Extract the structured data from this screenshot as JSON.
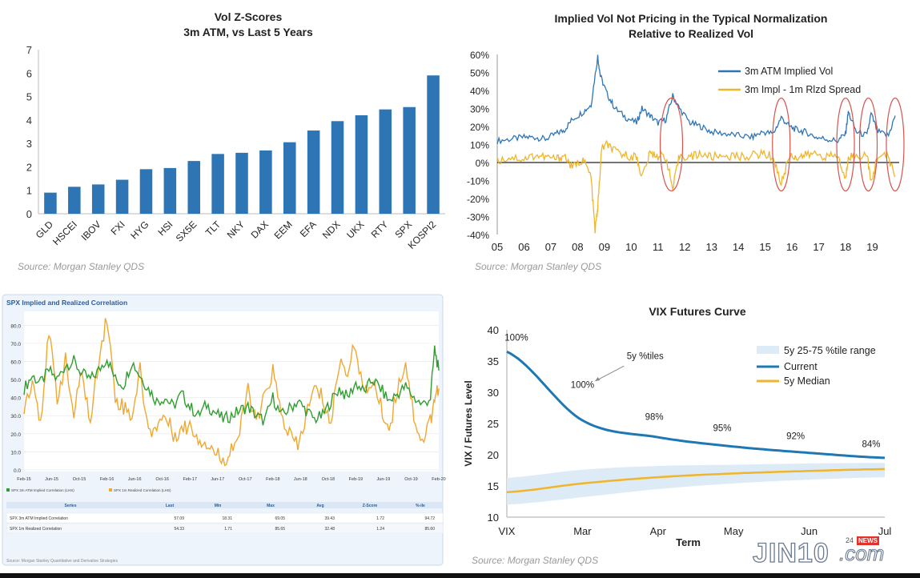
{
  "chart_data": [
    {
      "type": "bar",
      "title": "Vol Z-Scores",
      "subtitle": "3m ATM, vs Last 5 Years",
      "categories": [
        "GLD",
        "HSCEI",
        "IBOV",
        "FXI",
        "HYG",
        "HSI",
        "SX5E",
        "TLT",
        "NKY",
        "DAX",
        "EEM",
        "EFA",
        "NDX",
        "UKX",
        "RTY",
        "SPX",
        "KOSPI2"
      ],
      "values": [
        0.9,
        1.15,
        1.25,
        1.45,
        1.9,
        1.95,
        2.25,
        2.55,
        2.6,
        2.7,
        3.05,
        3.55,
        3.95,
        4.2,
        4.45,
        4.55,
        5.9
      ],
      "ylim": [
        0,
        7
      ],
      "yticks": [
        0,
        1,
        2,
        3,
        4,
        5,
        6,
        7
      ],
      "color": "#2e75b6",
      "source": "Source: Morgan Stanley QDS"
    },
    {
      "type": "line",
      "title": "Implied Vol Not Pricing in the Typical  Normalization",
      "subtitle": "Relative to Realized Vol",
      "xticks": [
        "05",
        "06",
        "07",
        "08",
        "09",
        "10",
        "11",
        "12",
        "13",
        "14",
        "15",
        "16",
        "17",
        "18",
        "19"
      ],
      "yticks": [
        "60%",
        "50%",
        "40%",
        "30%",
        "20%",
        "10%",
        "0%",
        "-10%",
        "-20%",
        "-30%",
        "-40%"
      ],
      "ylim": [
        -40,
        60
      ],
      "series": [
        {
          "name": "3m ATM  Implied Vol",
          "color": "#2e75b6",
          "x": [
            2005,
            2005.5,
            2006,
            2006.4,
            2006.8,
            2007.2,
            2007.5,
            2007.8,
            2008.2,
            2008.5,
            2008.75,
            2008.85,
            2009.1,
            2009.4,
            2009.8,
            2010.2,
            2010.4,
            2010.7,
            2011.0,
            2011.3,
            2011.55,
            2011.8,
            2012.2,
            2012.6,
            2013.0,
            2013.5,
            2014.0,
            2014.5,
            2014.9,
            2015.3,
            2015.6,
            2015.9,
            2016.2,
            2016.5,
            2016.9,
            2017.3,
            2017.7,
            2018.0,
            2018.1,
            2018.4,
            2018.8,
            2018.95,
            2019.2,
            2019.6,
            2019.85
          ],
          "y": [
            12,
            13,
            14,
            14,
            13,
            16,
            18,
            24,
            28,
            32,
            59,
            48,
            38,
            30,
            25,
            22,
            30,
            26,
            22,
            24,
            37,
            30,
            22,
            20,
            17,
            16,
            15,
            14,
            17,
            16,
            25,
            20,
            18,
            17,
            14,
            13,
            12,
            16,
            28,
            17,
            15,
            27,
            17,
            15,
            26
          ]
        },
        {
          "name": "3m Impl - 1m Rlzd Spread",
          "color": "#f0b52b",
          "x": [
            2005,
            2005.5,
            2006,
            2006.4,
            2006.8,
            2007.2,
            2007.5,
            2007.8,
            2008.2,
            2008.5,
            2008.65,
            2008.75,
            2008.9,
            2009.1,
            2009.4,
            2009.8,
            2010.2,
            2010.4,
            2010.7,
            2011.0,
            2011.3,
            2011.55,
            2011.8,
            2012.2,
            2012.6,
            2013.0,
            2013.5,
            2014.0,
            2014.5,
            2014.9,
            2015.3,
            2015.6,
            2015.9,
            2016.2,
            2016.5,
            2016.9,
            2017.3,
            2017.7,
            2018.0,
            2018.1,
            2018.4,
            2018.8,
            2018.95,
            2019.2,
            2019.6,
            2019.85
          ],
          "y": [
            1,
            3,
            2,
            4,
            3,
            2,
            4,
            -3,
            2,
            -8,
            -38,
            -25,
            8,
            10,
            6,
            4,
            3,
            -8,
            5,
            4,
            3,
            -15,
            4,
            3,
            5,
            3,
            4,
            3,
            4,
            5,
            3,
            -12,
            4,
            3,
            4,
            5,
            3,
            4,
            -10,
            4,
            3,
            5,
            -12,
            4,
            3,
            -8
          ]
        }
      ],
      "source": "Source: Morgan Stanley QDS"
    },
    {
      "type": "line",
      "title": "SPX Implied and Realized Correlation",
      "xticks": [
        "Feb-15",
        "Jun-15",
        "Oct-15",
        "Feb-16",
        "Jun-16",
        "Oct-16",
        "Feb-17",
        "Jun-17",
        "Oct-17",
        "Feb-18",
        "Jun-18",
        "Oct-18",
        "Feb-19",
        "Jun-19",
        "Oct-19",
        "Feb-20"
      ],
      "yticks": [
        "80.0",
        "70.0",
        "60.0",
        "50.0",
        "40.0",
        "30.0",
        "20.0",
        "10.0",
        "0.0"
      ],
      "ylim": [
        0,
        85
      ],
      "series": [
        {
          "name": "SPX 3m ATM Implied Correlation (LHS)",
          "color": "#2e9e2e",
          "x": [
            0,
            0.3,
            0.6,
            0.9,
            1.2,
            1.5,
            1.8,
            2.1,
            2.4,
            2.7,
            3.0,
            3.3,
            3.6,
            3.9,
            4.2,
            4.5,
            4.8,
            5.1,
            5.4,
            5.7,
            6.0,
            6.3,
            6.6,
            6.9,
            7.2,
            7.5,
            7.8,
            8.1,
            8.4,
            8.7,
            9.0,
            9.3,
            9.6,
            9.9,
            10.2,
            10.5,
            10.8,
            11.1,
            11.4,
            11.7,
            12.0,
            12.3,
            12.6,
            12.9,
            13.2,
            13.5,
            13.8,
            14.1,
            14.4,
            14.7,
            14.85,
            15.0
          ],
          "y": [
            45,
            52,
            48,
            55,
            50,
            58,
            60,
            53,
            50,
            55,
            62,
            50,
            47,
            60,
            52,
            45,
            38,
            40,
            35,
            42,
            35,
            30,
            36,
            32,
            28,
            30,
            33,
            35,
            30,
            27,
            40,
            30,
            34,
            38,
            33,
            28,
            30,
            38,
            45,
            40,
            48,
            43,
            50,
            45,
            38,
            42,
            46,
            40,
            36,
            40,
            67,
            55
          ]
        },
        {
          "name": "SPX 1m Realized Correlation (LHS)",
          "color": "#f0a830",
          "x": [
            0,
            0.3,
            0.6,
            0.9,
            1.2,
            1.5,
            1.8,
            2.1,
            2.4,
            2.7,
            3.0,
            3.3,
            3.6,
            3.9,
            4.2,
            4.5,
            4.8,
            5.1,
            5.4,
            5.7,
            6.0,
            6.3,
            6.6,
            6.9,
            7.2,
            7.5,
            7.8,
            8.1,
            8.4,
            8.7,
            9.0,
            9.3,
            9.6,
            9.9,
            10.2,
            10.5,
            10.8,
            11.1,
            11.4,
            11.7,
            12.0,
            12.3,
            12.6,
            12.9,
            13.2,
            13.5,
            13.8,
            14.1,
            14.4,
            14.7,
            14.85,
            15.0
          ],
          "y": [
            35,
            50,
            28,
            75,
            40,
            60,
            30,
            55,
            25,
            62,
            85,
            40,
            35,
            30,
            55,
            20,
            25,
            30,
            20,
            22,
            25,
            18,
            15,
            10,
            5,
            12,
            20,
            45,
            25,
            40,
            55,
            30,
            20,
            12,
            30,
            45,
            40,
            25,
            60,
            55,
            70,
            40,
            50,
            35,
            22,
            45,
            60,
            30,
            15,
            28,
            40,
            45
          ]
        }
      ],
      "legend": [
        "SPX 3m ATM Implied Correlation (LHS)",
        "SPX 1m Realized Correlation (LHS)"
      ],
      "table": {
        "columns": [
          "Series",
          "Last",
          "Min",
          "Max",
          "Avg",
          "Z-Score",
          "%-ile"
        ],
        "rows": [
          [
            "SPX 3m ATM Implied Correlation",
            "57.09",
            "18.31",
            "69.05",
            "39.43",
            "1.72",
            "94.72"
          ],
          [
            "SPX 1m Realized Correlation",
            "54.33",
            "1.71",
            "85.65",
            "32.48",
            "1.24",
            "85.60"
          ]
        ]
      },
      "source": "Source: Morgan Stanley Quantitative and Derivative Strategies"
    },
    {
      "type": "line",
      "title": "VIX Futures Curve",
      "xlabel": "Term",
      "ylabel": "VIX / Futures Level",
      "categories": [
        "VIX",
        "Mar",
        "Apr",
        "May",
        "Jun",
        "Jul"
      ],
      "ylim": [
        10,
        40
      ],
      "yticks": [
        10,
        15,
        20,
        25,
        30,
        35,
        40
      ],
      "series": [
        {
          "name": "Current",
          "color": "#1f78b4",
          "values": [
            36.5,
            25.5,
            22.8,
            21.3,
            20.3,
            19.5
          ]
        },
        {
          "name": "5y Median",
          "color": "#f0b52b",
          "values": [
            14.0,
            15.4,
            16.4,
            17.0,
            17.4,
            17.7
          ]
        },
        {
          "name": "5y 25-75 %tile range",
          "color": "#ddebf7",
          "lower": [
            12.0,
            13.2,
            14.5,
            15.4,
            16.0,
            16.4
          ],
          "upper": [
            16.3,
            17.6,
            18.2,
            18.4,
            18.6,
            18.7
          ]
        }
      ],
      "annotations": [
        "100%",
        "100%",
        "98%",
        "95%",
        "92%",
        "84%",
        "5y %tiles"
      ],
      "source": "Source: Morgan Stanley QDS"
    }
  ],
  "watermark": {
    "text": "JIN10",
    "suffix": ".com",
    "badge_num": "24",
    "badge": "NEWS"
  }
}
